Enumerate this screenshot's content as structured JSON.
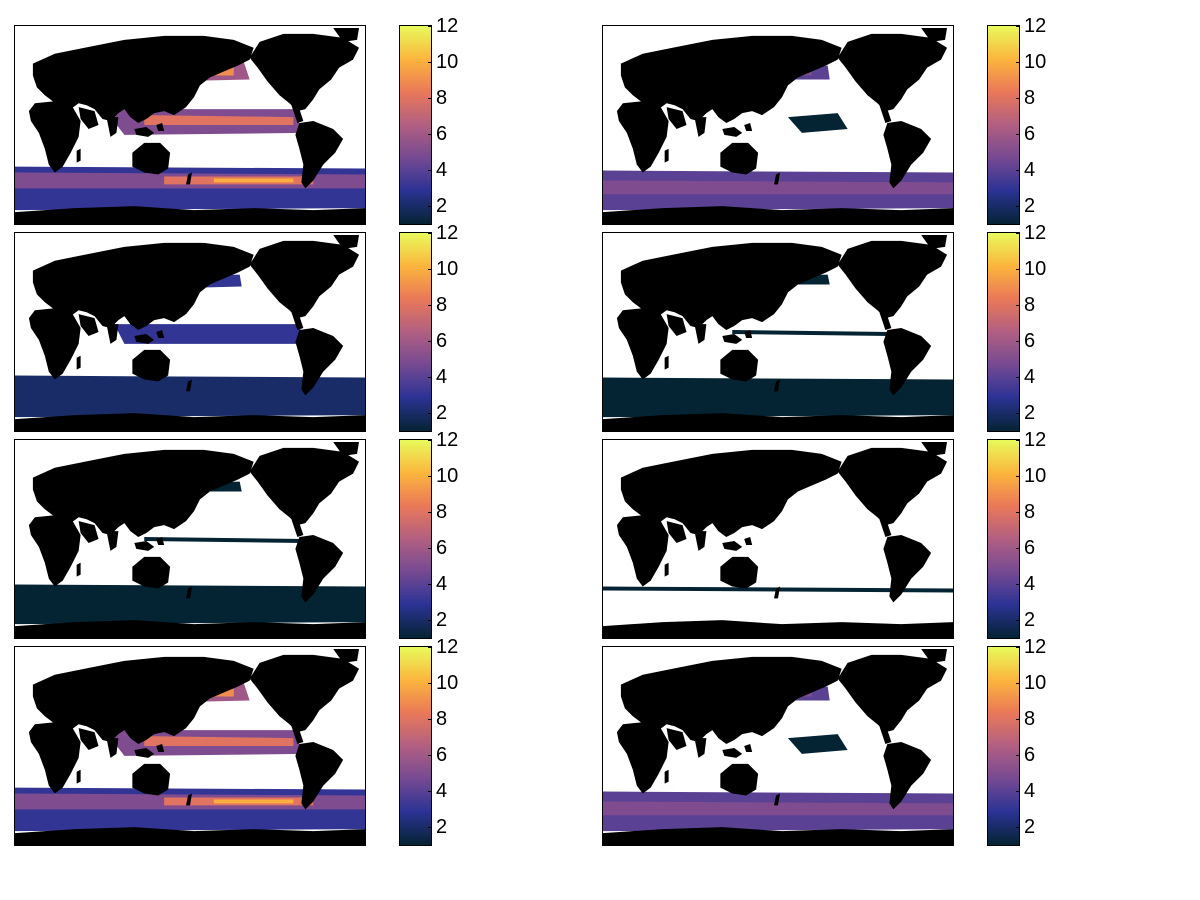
{
  "chart_data": {
    "type": "heatmap",
    "layout": "4 rows x 2 columns of global ocean maps, each with its own colorbar",
    "colorbar": {
      "ticks": [
        "2",
        "4",
        "6",
        "8",
        "10",
        "12"
      ],
      "range": [
        1,
        12
      ],
      "colormap": [
        "#042333",
        "#2c3395",
        "#744992",
        "#b15f82",
        "#eb7958",
        "#fbb43d",
        "#e8fa5b"
      ]
    },
    "land_color": "#000000",
    "missing_color": "#ffffff",
    "panels": [
      {
        "row": 1,
        "col": 1,
        "intensity": "high"
      },
      {
        "row": 1,
        "col": 2,
        "intensity": "medium"
      },
      {
        "row": 2,
        "col": 1,
        "intensity": "low-medium"
      },
      {
        "row": 2,
        "col": 2,
        "intensity": "low"
      },
      {
        "row": 3,
        "col": 1,
        "intensity": "low"
      },
      {
        "row": 3,
        "col": 2,
        "intensity": "very-low"
      },
      {
        "row": 4,
        "col": 1,
        "intensity": "high"
      },
      {
        "row": 4,
        "col": 2,
        "intensity": "medium"
      }
    ]
  }
}
